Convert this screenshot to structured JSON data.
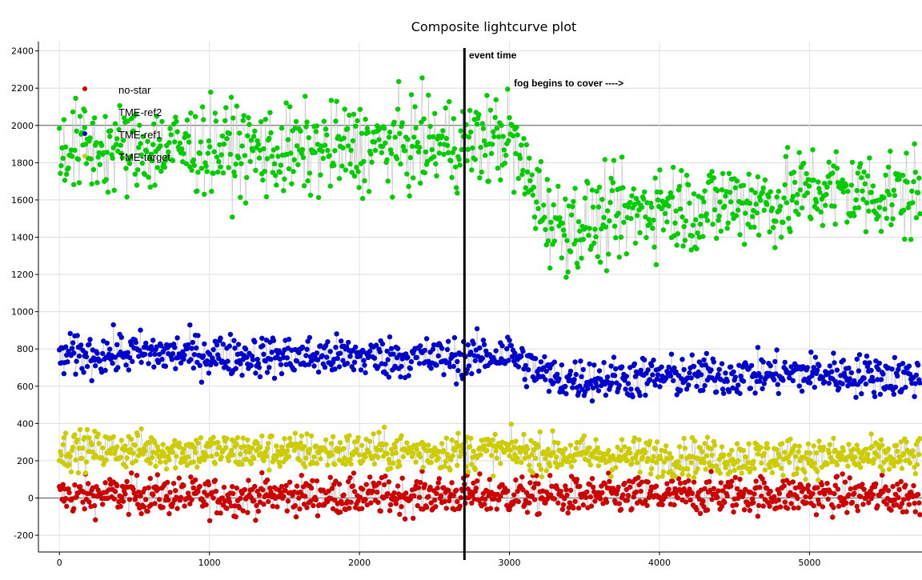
{
  "chart_data": {
    "type": "scatter",
    "title": "Composite lightcurve plot",
    "xlabel": "",
    "ylabel": "",
    "xlim": [
      -140,
      5750
    ],
    "ylim": [
      -290,
      2450
    ],
    "x_ticks": [
      0,
      1000,
      2000,
      3000,
      4000,
      5000
    ],
    "y_ticks": [
      -200,
      0,
      200,
      400,
      600,
      800,
      1000,
      1200,
      1400,
      1600,
      1800,
      2000,
      2200,
      2400
    ],
    "highlighted_gridlines": [
      0,
      2000
    ],
    "grid": true,
    "legend_position": "top-left",
    "event_line_x": 2700,
    "annotations": [
      {
        "text": "event time",
        "x": 2730,
        "y": 2360
      },
      {
        "text": "fog begins to cover ---->",
        "x": 3030,
        "y": 2210
      }
    ],
    "series": [
      {
        "name": "no-star",
        "color": "#cc0000",
        "x": [
          0,
          500,
          1000,
          1500,
          2000,
          2500,
          3000,
          3500,
          4000,
          4500,
          5000,
          5700
        ],
        "y": [
          10,
          20,
          5,
          15,
          10,
          15,
          15,
          10,
          10,
          20,
          15,
          10
        ],
        "scatter": 50
      },
      {
        "name": "TME-ref2",
        "color": "#00cc00",
        "x": [
          0,
          500,
          1000,
          1500,
          2000,
          2500,
          2700,
          3000,
          3100,
          3300,
          3500,
          3800,
          4000,
          4300,
          4500,
          4800,
          5000,
          5300,
          5700
        ],
        "y": [
          1880,
          1870,
          1880,
          1850,
          1880,
          1900,
          1900,
          1940,
          1750,
          1460,
          1470,
          1520,
          1580,
          1550,
          1600,
          1580,
          1660,
          1640,
          1630
        ],
        "scatter": 120
      },
      {
        "name": "TME-ref1",
        "color": "#0000cc",
        "x": [
          0,
          500,
          1000,
          1500,
          2000,
          2500,
          2700,
          3000,
          3100,
          3300,
          3500,
          4000,
          4500,
          5000,
          5700
        ],
        "y": [
          760,
          780,
          770,
          760,
          760,
          750,
          750,
          780,
          720,
          640,
          640,
          650,
          660,
          670,
          650
        ],
        "scatter": 55
      },
      {
        "name": "TME-target",
        "color": "#cccc00",
        "x": [
          0,
          500,
          1000,
          1500,
          2000,
          2500,
          3000,
          3500,
          4000,
          4500,
          5000,
          5700
        ],
        "y": [
          260,
          260,
          250,
          250,
          250,
          250,
          250,
          230,
          220,
          220,
          220,
          220
        ],
        "scatter": 50
      }
    ]
  }
}
